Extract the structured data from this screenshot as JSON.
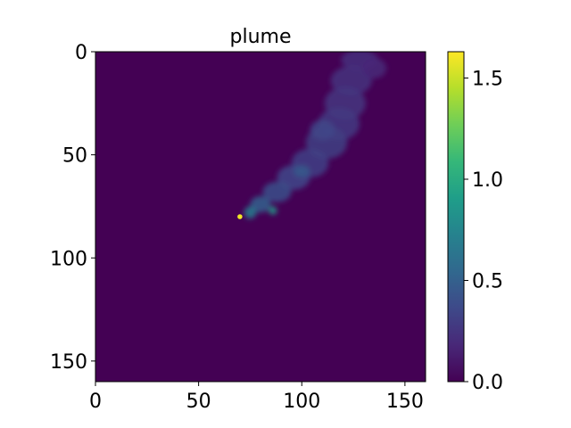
{
  "chart_data": {
    "type": "heatmap",
    "title": "plume",
    "xlabel": "",
    "ylabel": "",
    "xlim": [
      0,
      160
    ],
    "ylim": [
      160,
      0
    ],
    "y_inverted": true,
    "x_ticks": [
      "0",
      "50",
      "100",
      "150"
    ],
    "y_ticks": [
      "0",
      "50",
      "100",
      "150"
    ],
    "colormap": "viridis",
    "background_value": 0.0,
    "colorbar": {
      "range": [
        0.0,
        1.63
      ],
      "ticks": [
        "0.0",
        "0.5",
        "1.0",
        "1.5"
      ],
      "placement": "right"
    },
    "peak": {
      "x": 70,
      "y": 80,
      "value": 1.6
    },
    "plume_blobs": [
      {
        "x": 128,
        "y": 4,
        "rx": 9,
        "ry": 5,
        "value": 0.22
      },
      {
        "x": 124,
        "y": 14,
        "rx": 10,
        "ry": 7,
        "value": 0.24
      },
      {
        "x": 121,
        "y": 25,
        "rx": 10,
        "ry": 8,
        "value": 0.26
      },
      {
        "x": 118,
        "y": 35,
        "rx": 10,
        "ry": 8,
        "value": 0.28
      },
      {
        "x": 112,
        "y": 44,
        "rx": 10,
        "ry": 8,
        "value": 0.3
      },
      {
        "x": 104,
        "y": 54,
        "rx": 9,
        "ry": 7,
        "value": 0.32
      },
      {
        "x": 96,
        "y": 61,
        "rx": 8,
        "ry": 6,
        "value": 0.36
      },
      {
        "x": 88,
        "y": 68,
        "rx": 7,
        "ry": 5,
        "value": 0.4
      },
      {
        "x": 80,
        "y": 74,
        "rx": 5,
        "ry": 4,
        "value": 0.5
      },
      {
        "x": 75,
        "y": 78,
        "rx": 3,
        "ry": 3,
        "value": 0.7
      },
      {
        "x": 86,
        "y": 77,
        "rx": 2,
        "ry": 2,
        "value": 0.9
      },
      {
        "x": 135,
        "y": 8,
        "rx": 6,
        "ry": 5,
        "value": 0.18
      },
      {
        "x": 110,
        "y": 38,
        "rx": 6,
        "ry": 5,
        "value": 0.35
      },
      {
        "x": 100,
        "y": 58,
        "rx": 4,
        "ry": 3,
        "value": 0.45
      }
    ]
  },
  "colors": {
    "viridis": [
      "#440154",
      "#482878",
      "#3e4989",
      "#31688e",
      "#26828e",
      "#1f9e89",
      "#35b779",
      "#6ece58",
      "#b5de2b",
      "#fde725"
    ]
  }
}
